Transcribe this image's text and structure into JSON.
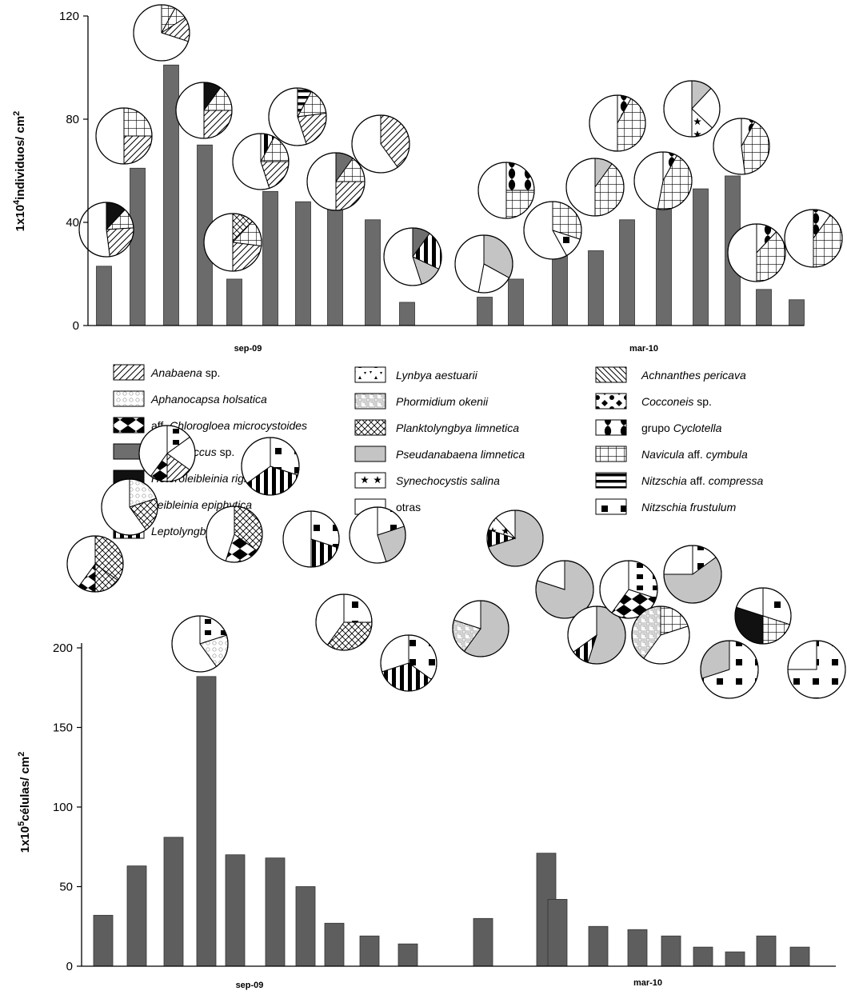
{
  "chart_data": [
    {
      "type": "bar",
      "ylabel_base": "1x10",
      "ylabel_exp": "4",
      "ylabel_text": "individuos/ cm",
      "ylabel_sup": "2",
      "ylim": [
        0,
        120
      ],
      "yticks": [
        "0",
        "40",
        "80",
        "120"
      ],
      "group_labels": [
        "sep-09",
        "mar-10"
      ],
      "groups": [
        {
          "label": "sep-09",
          "values": [
            23,
            61,
            101,
            70,
            18,
            52,
            48,
            45,
            41,
            9
          ]
        },
        {
          "label": "mar-10",
          "values": [
            11,
            18,
            27,
            29,
            41,
            47,
            53,
            58,
            14,
            10
          ]
        }
      ]
    },
    {
      "type": "bar",
      "ylabel_base": "1x10",
      "ylabel_exp": "5",
      "ylabel_text": "células/ cm",
      "ylabel_sup": "2",
      "ylim": [
        0,
        200
      ],
      "yticks": [
        "0",
        "50",
        "100",
        "150",
        "200"
      ],
      "group_labels": [
        "sep-09",
        "mar-10"
      ],
      "groups": [
        {
          "label": "sep-09",
          "values": [
            32,
            63,
            81,
            182,
            70,
            68,
            50,
            27,
            19,
            14
          ]
        },
        {
          "label": "mar-10",
          "values": [
            30,
            71,
            42,
            25,
            23,
            19,
            12,
            9,
            19,
            12
          ]
        }
      ]
    }
  ],
  "legend": {
    "col1": [
      {
        "parts": [
          [
            "Anabaena",
            true
          ],
          [
            " sp.",
            false
          ]
        ],
        "pattern": "p-diag-r"
      },
      {
        "parts": [
          [
            "Aphanocapsa holsatica",
            true
          ]
        ],
        "pattern": "p-dots"
      },
      {
        "parts": [
          [
            "aff. ",
            false
          ],
          [
            "Chlorogloea microcystoides",
            true
          ]
        ],
        "pattern": "p-bowtie"
      },
      {
        "parts": [
          [
            "Chroococcus",
            true
          ],
          [
            " sp.",
            false
          ]
        ],
        "pattern": "p-gray"
      },
      {
        "parts": [
          [
            "Heteroleibleinia rigidula",
            true
          ]
        ],
        "pattern": "p-black"
      },
      {
        "parts": [
          [
            "Leibleinia epiphytica",
            true
          ]
        ],
        "pattern": "p-semis"
      },
      {
        "parts": [
          [
            "Leptolyngbya subtilis",
            true
          ]
        ],
        "pattern": "p-vstripe"
      }
    ],
    "col2": [
      {
        "parts": [
          [
            "Lynbya aestuarii",
            true
          ]
        ],
        "pattern": "p-lyng"
      },
      {
        "parts": [
          [
            "Phormidium okenii",
            true
          ]
        ],
        "pattern": "p-maze"
      },
      {
        "parts": [
          [
            "Planktolyngbya limnetica",
            true
          ]
        ],
        "pattern": "p-cross"
      },
      {
        "parts": [
          [
            "Pseudanabaena limnetica",
            true
          ]
        ],
        "pattern": "p-lgray"
      },
      {
        "parts": [
          [
            "Synechocystis salina",
            true
          ]
        ],
        "pattern": "p-star"
      },
      {
        "parts": [
          [
            "otras",
            false
          ]
        ],
        "pattern": "p-white"
      }
    ],
    "col3": [
      {
        "parts": [
          [
            "Achnanthes pericava",
            true
          ]
        ],
        "pattern": "p-diag-l"
      },
      {
        "parts": [
          [
            "Cocconeis",
            true
          ],
          [
            " sp.",
            false
          ]
        ],
        "pattern": "p-coc"
      },
      {
        "parts": [
          [
            "grupo ",
            false
          ],
          [
            "Cyclotella",
            true
          ]
        ],
        "pattern": "p-cyc"
      },
      {
        "parts": [
          [
            "Navicula",
            true
          ],
          [
            " aff. ",
            false
          ],
          [
            "cymbula",
            true
          ]
        ],
        "pattern": "p-grid"
      },
      {
        "parts": [
          [
            "Nitzschia",
            true
          ],
          [
            " aff. ",
            false
          ],
          [
            "compressa",
            true
          ]
        ],
        "pattern": "p-hstripe"
      },
      {
        "parts": [
          [
            "Nitzschia frustulum",
            true
          ]
        ],
        "pattern": "p-checker"
      }
    ]
  }
}
